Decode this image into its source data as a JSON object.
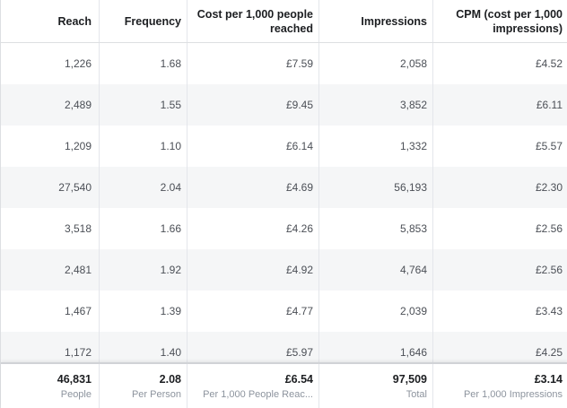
{
  "columns": [
    "Reach",
    "Frequency",
    "Cost per 1,000 people reached",
    "Impressions",
    "CPM (cost per 1,000 impressions)"
  ],
  "rows": [
    [
      "1,226",
      "1.68",
      "£7.59",
      "2,058",
      "£4.52"
    ],
    [
      "2,489",
      "1.55",
      "£9.45",
      "3,852",
      "£6.11"
    ],
    [
      "1,209",
      "1.10",
      "£6.14",
      "1,332",
      "£5.57"
    ],
    [
      "27,540",
      "2.04",
      "£4.69",
      "56,193",
      "£2.30"
    ],
    [
      "3,518",
      "1.66",
      "£4.26",
      "5,853",
      "£2.56"
    ],
    [
      "2,481",
      "1.92",
      "£4.92",
      "4,764",
      "£2.56"
    ],
    [
      "1,467",
      "1.39",
      "£4.77",
      "2,039",
      "£3.43"
    ],
    [
      "1,172",
      "1.40",
      "£5.97",
      "1,646",
      "£4.25"
    ]
  ],
  "totals": [
    {
      "value": "46,831",
      "sub": "People"
    },
    {
      "value": "2.08",
      "sub": "Per Person"
    },
    {
      "value": "£6.54",
      "sub": "Per 1,000 People Reac..."
    },
    {
      "value": "97,509",
      "sub": "Total"
    },
    {
      "value": "£3.14",
      "sub": "Per 1,000 Impressions"
    }
  ]
}
